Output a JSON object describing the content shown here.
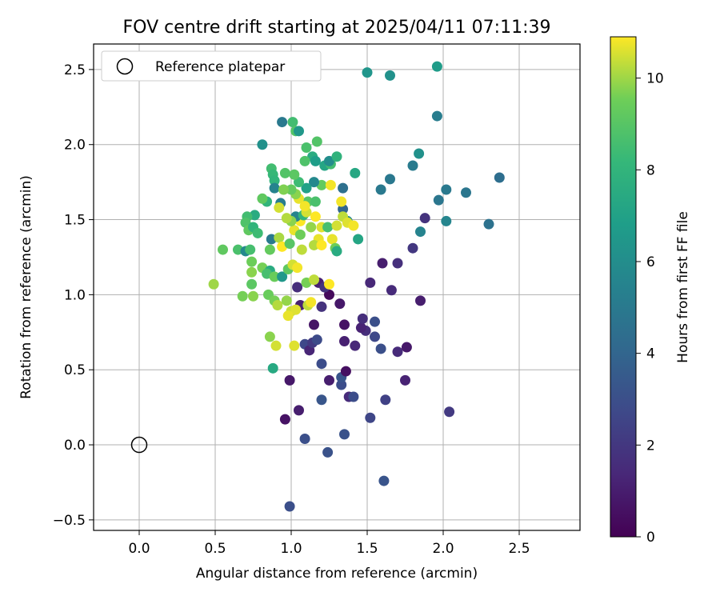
{
  "chart_data": {
    "type": "scatter",
    "title": "FOV centre drift starting at 2025/04/11 07:11:39",
    "xlabel": "Angular distance from reference (arcmin)",
    "ylabel": "Rotation from reference (arcmin)",
    "xlim": [
      -0.3,
      2.9
    ],
    "ylim": [
      -0.57,
      2.67
    ],
    "x_ticks": [
      0.0,
      0.5,
      1.0,
      1.5,
      2.0,
      2.5
    ],
    "x_tick_labels": [
      "0.0",
      "0.5",
      "1.0",
      "1.5",
      "2.0",
      "2.5"
    ],
    "y_ticks": [
      -0.5,
      0.0,
      0.5,
      1.0,
      1.5,
      2.0,
      2.5
    ],
    "y_tick_labels": [
      "−0.5",
      "0.0",
      "0.5",
      "1.0",
      "1.5",
      "2.0",
      "2.5"
    ],
    "grid": true,
    "legend": {
      "location": "top-left",
      "entries": [
        "Reference platepar"
      ]
    },
    "reference_point": {
      "x": 0.0,
      "y": 0.0,
      "label": "Reference platepar"
    },
    "colorbar": {
      "label": "Hours from first FF file",
      "range": [
        0,
        10.9
      ],
      "ticks": [
        0,
        2,
        4,
        6,
        8,
        10
      ],
      "tick_labels": [
        "0",
        "2",
        "4",
        "6",
        "8",
        "10"
      ],
      "colormap": "viridis"
    },
    "points": [
      [
        0.99,
        -0.41,
        3.0
      ],
      [
        1.61,
        -0.24,
        3.2
      ],
      [
        1.24,
        -0.05,
        3.1
      ],
      [
        1.09,
        0.04,
        3.0
      ],
      [
        1.35,
        0.07,
        3.1
      ],
      [
        0.96,
        0.17,
        0.6
      ],
      [
        1.05,
        0.23,
        1.0
      ],
      [
        1.52,
        0.18,
        2.6
      ],
      [
        1.62,
        0.3,
        2.4
      ],
      [
        2.04,
        0.22,
        2.1
      ],
      [
        1.2,
        0.3,
        3.3
      ],
      [
        1.38,
        0.32,
        1.5
      ],
      [
        1.41,
        0.32,
        2.9
      ],
      [
        1.33,
        0.4,
        2.9
      ],
      [
        1.25,
        0.43,
        1.0
      ],
      [
        1.33,
        0.45,
        3.2
      ],
      [
        0.99,
        0.43,
        0.8
      ],
      [
        1.36,
        0.49,
        0.5
      ],
      [
        1.75,
        0.43,
        1.2
      ],
      [
        1.2,
        0.54,
        2.9
      ],
      [
        1.09,
        0.67,
        2.7
      ],
      [
        1.12,
        0.63,
        1.3
      ],
      [
        1.14,
        0.68,
        2.1
      ],
      [
        1.17,
        0.7,
        2.8
      ],
      [
        1.35,
        0.69,
        1.1
      ],
      [
        1.42,
        0.66,
        1.4
      ],
      [
        1.59,
        0.64,
        3.0
      ],
      [
        1.7,
        0.62,
        1.5
      ],
      [
        1.76,
        0.65,
        0.8
      ],
      [
        1.55,
        0.72,
        2.7
      ],
      [
        1.49,
        0.76,
        1.6
      ],
      [
        1.46,
        0.78,
        1.2
      ],
      [
        1.47,
        0.84,
        1.6
      ],
      [
        1.35,
        0.8,
        0.6
      ],
      [
        1.55,
        0.82,
        3.0
      ],
      [
        1.15,
        0.8,
        0.7
      ],
      [
        1.06,
        0.93,
        1.1
      ],
      [
        1.2,
        0.92,
        1.8
      ],
      [
        1.32,
        0.94,
        0.8
      ],
      [
        1.25,
        1.0,
        0.3
      ],
      [
        1.04,
        1.05,
        1.6
      ],
      [
        1.18,
        1.08,
        1.1
      ],
      [
        1.22,
        1.05,
        1.8
      ],
      [
        1.52,
        1.08,
        1.4
      ],
      [
        1.66,
        1.03,
        1.5
      ],
      [
        1.85,
        0.96,
        1.0
      ],
      [
        1.6,
        1.21,
        1.0
      ],
      [
        1.7,
        1.21,
        1.7
      ],
      [
        1.8,
        1.31,
        2.0
      ],
      [
        1.88,
        1.51,
        1.8
      ],
      [
        1.85,
        1.42,
        5.5
      ],
      [
        1.59,
        1.7,
        5.0
      ],
      [
        1.65,
        1.77,
        4.9
      ],
      [
        1.8,
        1.86,
        5.1
      ],
      [
        1.97,
        1.63,
        4.8
      ],
      [
        2.02,
        1.7,
        5.0
      ],
      [
        2.15,
        1.68,
        4.8
      ],
      [
        2.3,
        1.47,
        4.6
      ],
      [
        2.37,
        1.78,
        4.4
      ],
      [
        2.02,
        1.49,
        5.6
      ],
      [
        1.84,
        1.94,
        6.2
      ],
      [
        1.96,
        2.19,
        5.2
      ],
      [
        1.5,
        2.48,
        6.4
      ],
      [
        1.65,
        2.46,
        6.2
      ],
      [
        1.96,
        2.52,
        6.7
      ],
      [
        1.34,
        1.57,
        4.0
      ],
      [
        1.34,
        1.71,
        4.5
      ],
      [
        1.37,
        1.49,
        5.7
      ],
      [
        1.44,
        1.37,
        7.2
      ],
      [
        1.42,
        1.81,
        7.3
      ],
      [
        0.93,
        1.61,
        5.2
      ],
      [
        0.81,
        2.0,
        6.2
      ],
      [
        0.94,
        2.15,
        5.0
      ],
      [
        1.01,
        2.15,
        8.5
      ],
      [
        1.03,
        2.09,
        8.9
      ],
      [
        1.05,
        2.09,
        6.5
      ],
      [
        1.1,
        1.98,
        8.7
      ],
      [
        1.14,
        1.92,
        7.5
      ],
      [
        1.17,
        2.02,
        8.9
      ],
      [
        1.09,
        1.89,
        8.8
      ],
      [
        1.16,
        1.89,
        6.8
      ],
      [
        1.22,
        1.86,
        7.2
      ],
      [
        1.26,
        1.87,
        8.5
      ],
      [
        1.25,
        1.89,
        6.0
      ],
      [
        1.3,
        1.92,
        7.9
      ],
      [
        1.2,
        1.73,
        9.3
      ],
      [
        1.26,
        1.73,
        10.8
      ],
      [
        1.15,
        1.75,
        5.8
      ],
      [
        1.1,
        1.71,
        7.0
      ],
      [
        1.05,
        1.75,
        8.4
      ],
      [
        1.02,
        1.8,
        9.1
      ],
      [
        0.96,
        1.81,
        8.9
      ],
      [
        0.87,
        1.84,
        8.5
      ],
      [
        0.88,
        1.8,
        8.2
      ],
      [
        0.89,
        1.76,
        8.0
      ],
      [
        0.89,
        1.71,
        5.5
      ],
      [
        0.84,
        1.62,
        8.0
      ],
      [
        0.81,
        1.64,
        9.2
      ],
      [
        0.76,
        1.53,
        7.5
      ],
      [
        0.71,
        1.52,
        8.5
      ],
      [
        0.7,
        1.48,
        8.8
      ],
      [
        0.72,
        1.43,
        9.2
      ],
      [
        0.75,
        1.45,
        8.0
      ],
      [
        0.78,
        1.41,
        8.4
      ],
      [
        0.87,
        1.37,
        5.0
      ],
      [
        0.86,
        1.3,
        9.3
      ],
      [
        0.92,
        1.38,
        10.1
      ],
      [
        0.94,
        1.32,
        10.9
      ],
      [
        0.99,
        1.34,
        9.0
      ],
      [
        1.02,
        1.43,
        10.7
      ],
      [
        0.65,
        1.3,
        8.7
      ],
      [
        0.55,
        1.3,
        9.2
      ],
      [
        0.7,
        1.29,
        5.8
      ],
      [
        0.73,
        1.3,
        8.6
      ],
      [
        0.74,
        1.22,
        9.5
      ],
      [
        0.74,
        1.15,
        9.8
      ],
      [
        0.81,
        1.18,
        9.6
      ],
      [
        0.86,
        1.16,
        7.5
      ],
      [
        0.84,
        1.14,
        8.6
      ],
      [
        0.89,
        1.12,
        9.4
      ],
      [
        0.94,
        1.12,
        6.5
      ],
      [
        0.98,
        1.17,
        9.2
      ],
      [
        1.01,
        1.2,
        10.5
      ],
      [
        1.04,
        1.18,
        10.8
      ],
      [
        1.07,
        1.3,
        10.3
      ],
      [
        0.74,
        1.07,
        9.1
      ],
      [
        0.68,
        0.99,
        9.6
      ],
      [
        0.75,
        0.99,
        9.8
      ],
      [
        0.85,
        1.0,
        9.4
      ],
      [
        0.89,
        0.96,
        9.6
      ],
      [
        0.91,
        0.93,
        10.2
      ],
      [
        0.97,
        0.96,
        9.9
      ],
      [
        1.0,
        0.89,
        10.4
      ],
      [
        1.03,
        0.9,
        10.6
      ],
      [
        0.98,
        0.86,
        10.7
      ],
      [
        1.11,
        0.93,
        10.3
      ],
      [
        1.13,
        0.95,
        10.8
      ],
      [
        1.1,
        1.08,
        9.6
      ],
      [
        1.15,
        1.1,
        10.3
      ],
      [
        1.25,
        1.07,
        10.9
      ],
      [
        0.49,
        1.07,
        10.0
      ],
      [
        0.86,
        0.72,
        9.8
      ],
      [
        0.9,
        0.66,
        10.5
      ],
      [
        1.02,
        0.66,
        10.6
      ],
      [
        0.88,
        0.51,
        7.4
      ],
      [
        1.06,
        1.4,
        9.5
      ],
      [
        1.06,
        1.49,
        10.9
      ],
      [
        1.03,
        1.52,
        5.5
      ],
      [
        1.08,
        1.53,
        8.0
      ],
      [
        1.1,
        1.55,
        10.5
      ],
      [
        1.13,
        1.45,
        9.9
      ],
      [
        1.16,
        1.52,
        10.9
      ],
      [
        1.2,
        1.45,
        10.6
      ],
      [
        1.18,
        1.37,
        10.7
      ],
      [
        1.15,
        1.33,
        10.2
      ],
      [
        1.2,
        1.33,
        10.9
      ],
      [
        1.24,
        1.45,
        8.6
      ],
      [
        1.27,
        1.37,
        10.7
      ],
      [
        1.29,
        1.31,
        9.5
      ],
      [
        1.3,
        1.29,
        7.5
      ],
      [
        1.3,
        1.46,
        10.5
      ],
      [
        1.33,
        1.62,
        10.8
      ],
      [
        1.34,
        1.52,
        10.3
      ],
      [
        1.37,
        1.48,
        10.6
      ],
      [
        1.41,
        1.46,
        10.8
      ],
      [
        1.11,
        1.62,
        9.0
      ],
      [
        1.16,
        1.62,
        8.7
      ],
      [
        1.05,
        1.64,
        10.7
      ],
      [
        1.03,
        1.67,
        9.8
      ],
      [
        1.0,
        1.7,
        9.3
      ],
      [
        0.95,
        1.7,
        9.7
      ],
      [
        0.92,
        1.58,
        10.5
      ],
      [
        1.09,
        1.59,
        10.8
      ],
      [
        1.0,
        1.49,
        9.8
      ],
      [
        0.97,
        1.51,
        10.2
      ]
    ]
  }
}
